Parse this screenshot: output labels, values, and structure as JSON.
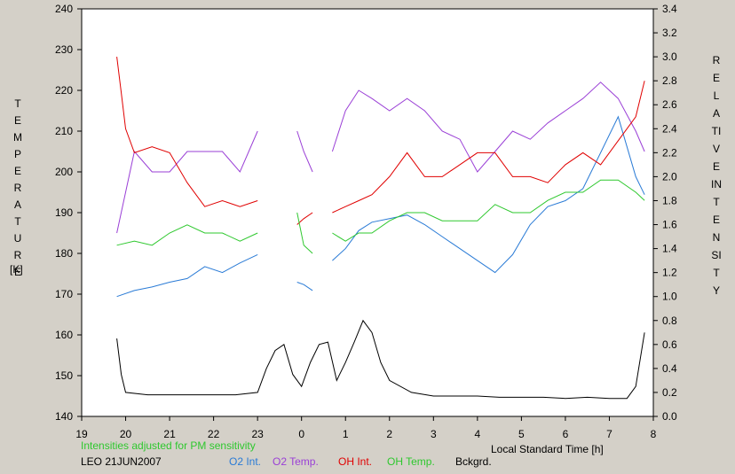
{
  "chart_data": {
    "type": "line",
    "left_axis_label": "TEMPERATURE",
    "left_axis_unit": "[K]",
    "right_axis_label": "RELATIVE INTENSITY",
    "xlabel": "Local Standard Time [h]",
    "note": "Intensities adjusted for PM sensitivity",
    "station_date": "LEO 21JUN2007",
    "x_ticks": [
      "19",
      "20",
      "21",
      "22",
      "23",
      "0",
      "1",
      "2",
      "3",
      "4",
      "5",
      "6",
      "7",
      "8"
    ],
    "y_left_ticks": [
      140,
      150,
      160,
      170,
      180,
      190,
      200,
      210,
      220,
      230,
      240
    ],
    "y_right_ticks": [
      "0.0",
      "0.2",
      "0.4",
      "0.6",
      "0.8",
      "1.0",
      "1.2",
      "1.4",
      "1.6",
      "1.8",
      "2.0",
      "2.2",
      "2.4",
      "2.6",
      "2.8",
      "3.0",
      "3.2",
      "3.4"
    ],
    "ylim_left": [
      140,
      240
    ],
    "ylim_right": [
      0,
      3.4
    ],
    "xlim_hours": [
      19,
      32
    ],
    "grid": false,
    "legend_position": "bottom",
    "series": [
      {
        "name": "O2 Int.",
        "axis": "right",
        "color": "#2a7bd6",
        "segments": [
          {
            "x": [
              19.8,
              20.2,
              20.6,
              21.0,
              21.4,
              21.8,
              22.2,
              22.6,
              23.0
            ],
            "y": [
              1.0,
              1.05,
              1.08,
              1.12,
              1.15,
              1.25,
              1.2,
              1.28,
              1.35
            ]
          },
          {
            "x": [
              23.9,
              24.05,
              24.25
            ],
            "y": [
              1.12,
              1.1,
              1.05
            ]
          },
          {
            "x": [
              24.7,
              25.0,
              25.3,
              25.6,
              26.0,
              26.4,
              26.8,
              27.2,
              27.6,
              28.0,
              28.4,
              28.8,
              29.2,
              29.6,
              30.0,
              30.4,
              30.8,
              31.2,
              31.6,
              31.8
            ],
            "y": [
              1.3,
              1.4,
              1.55,
              1.62,
              1.65,
              1.68,
              1.6,
              1.5,
              1.4,
              1.3,
              1.2,
              1.35,
              1.6,
              1.75,
              1.8,
              1.9,
              2.2,
              2.5,
              2.0,
              1.85
            ]
          }
        ]
      },
      {
        "name": "O2 Temp.",
        "axis": "left",
        "color": "#9a3fd6",
        "segments": [
          {
            "x": [
              19.8,
              20.2,
              20.6,
              21.0,
              21.4,
              21.8,
              22.2,
              22.6,
              23.0
            ],
            "y": [
              185,
              205,
              200,
              200,
              205,
              205,
              205,
              200,
              210
            ]
          },
          {
            "x": [
              23.9,
              24.05,
              24.25
            ],
            "y": [
              210,
              205,
              200
            ]
          },
          {
            "x": [
              24.7,
              25.0,
              25.3,
              25.6,
              26.0,
              26.4,
              26.8,
              27.2,
              27.6,
              28.0,
              28.4,
              28.8,
              29.2,
              29.6,
              30.0,
              30.4,
              30.8,
              31.2,
              31.6,
              31.8
            ],
            "y": [
              205,
              215,
              220,
              218,
              215,
              218,
              215,
              210,
              208,
              200,
              205,
              210,
              208,
              212,
              215,
              218,
              222,
              218,
              210,
              205
            ]
          }
        ]
      },
      {
        "name": "OH Int.",
        "axis": "right",
        "color": "#e00000",
        "segments": [
          {
            "x": [
              19.8,
              19.9,
              20.0,
              20.2,
              20.6,
              21.0,
              21.4,
              21.8,
              22.2,
              22.6,
              23.0
            ],
            "y": [
              3.0,
              2.7,
              2.4,
              2.2,
              2.25,
              2.2,
              1.95,
              1.75,
              1.8,
              1.75,
              1.8
            ]
          },
          {
            "x": [
              23.9,
              24.05,
              24.25
            ],
            "y": [
              1.6,
              1.65,
              1.7
            ]
          },
          {
            "x": [
              24.7,
              25.0,
              25.3,
              25.6,
              26.0,
              26.4,
              26.8,
              27.2,
              27.6,
              28.0,
              28.4,
              28.8,
              29.2,
              29.6,
              30.0,
              30.4,
              30.8,
              31.2,
              31.6,
              31.8
            ],
            "y": [
              1.7,
              1.75,
              1.8,
              1.85,
              2.0,
              2.2,
              2.0,
              2.0,
              2.1,
              2.2,
              2.2,
              2.0,
              2.0,
              1.95,
              2.1,
              2.2,
              2.1,
              2.3,
              2.5,
              2.8
            ]
          }
        ]
      },
      {
        "name": "OH Temp.",
        "axis": "left",
        "color": "#2ec82e",
        "segments": [
          {
            "x": [
              19.8,
              20.2,
              20.6,
              21.0,
              21.4,
              21.8,
              22.2,
              22.6,
              23.0
            ],
            "y": [
              182,
              183,
              182,
              185,
              187,
              185,
              185,
              183,
              185
            ]
          },
          {
            "x": [
              23.9,
              24.05,
              24.25
            ],
            "y": [
              190,
              182,
              180
            ]
          },
          {
            "x": [
              24.7,
              25.0,
              25.3,
              25.6,
              26.0,
              26.4,
              26.8,
              27.2,
              27.6,
              28.0,
              28.4,
              28.8,
              29.2,
              29.6,
              30.0,
              30.4,
              30.8,
              31.2,
              31.6,
              31.8
            ],
            "y": [
              185,
              183,
              185,
              185,
              188,
              190,
              190,
              188,
              188,
              188,
              192,
              190,
              190,
              193,
              195,
              195,
              198,
              198,
              195,
              193
            ]
          }
        ]
      },
      {
        "name": "Bckgrd.",
        "axis": "right",
        "color": "#000000",
        "segments": [
          {
            "x": [
              19.8,
              19.9,
              20.0,
              20.5,
              21.0,
              21.5,
              22.0,
              22.5,
              23.0,
              23.2,
              23.4,
              23.6,
              23.8,
              24.0,
              24.2,
              24.4,
              24.6,
              24.8,
              25.0,
              25.2,
              25.4,
              25.6,
              25.8,
              26.0,
              26.5,
              27.0,
              27.5,
              28.0,
              28.5,
              29.0,
              29.5,
              30.0,
              30.5,
              31.0,
              31.4,
              31.6,
              31.8
            ],
            "y": [
              0.65,
              0.35,
              0.2,
              0.18,
              0.18,
              0.18,
              0.18,
              0.18,
              0.2,
              0.4,
              0.55,
              0.6,
              0.35,
              0.25,
              0.45,
              0.6,
              0.62,
              0.3,
              0.45,
              0.62,
              0.8,
              0.7,
              0.45,
              0.3,
              0.2,
              0.17,
              0.17,
              0.17,
              0.16,
              0.16,
              0.16,
              0.15,
              0.16,
              0.15,
              0.15,
              0.25,
              0.7
            ]
          }
        ]
      }
    ]
  }
}
